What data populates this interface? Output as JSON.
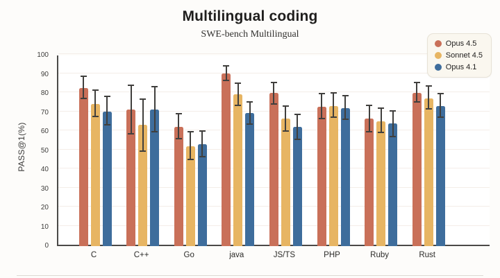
{
  "page": {
    "title": "Multilingual coding",
    "subtitle": "SWE-bench Multilingual"
  },
  "chart_data": {
    "type": "bar",
    "title": "Multilingual coding",
    "subtitle": "SWE-bench Multilingual",
    "xlabel": "",
    "ylabel": "PASS@1(%)",
    "ylim": [
      0,
      100
    ],
    "ytick_step": 10,
    "grid": true,
    "legend_position": "top-right",
    "categories": [
      "C",
      "C++",
      "Go",
      "java",
      "JS/TS",
      "PHP",
      "Ruby",
      "Rust"
    ],
    "series": [
      {
        "name": "Opus 4.5",
        "color": "#C97059",
        "values": [
          83,
          71.5,
          62.5,
          90.5,
          80.5,
          73,
          67,
          80.5
        ],
        "err_low": [
          77.5,
          59,
          56.5,
          87,
          74.5,
          67,
          60,
          75.5
        ],
        "err_high": [
          89,
          84.5,
          69.5,
          94.5,
          86,
          80,
          74,
          86
        ]
      },
      {
        "name": "Sonnet 4.5",
        "color": "#E7B563",
        "values": [
          74.5,
          63.5,
          52.5,
          79.5,
          67,
          73.5,
          65.5,
          77.5
        ],
        "err_low": [
          68,
          50,
          45.5,
          74,
          60.5,
          67.5,
          59.5,
          72
        ],
        "err_high": [
          82,
          77,
          60,
          85.5,
          73.5,
          80.5,
          72.5,
          84
        ]
      },
      {
        "name": "Opus 4.1",
        "color": "#3E6D9C",
        "values": [
          70.5,
          71.5,
          53.5,
          70,
          62.5,
          72.5,
          64.5,
          73.5
        ],
        "err_low": [
          63.5,
          60,
          47,
          64,
          56,
          66.5,
          57.5,
          67.5
        ],
        "err_high": [
          78.5,
          83.5,
          60.5,
          75.5,
          69,
          79,
          71,
          80
        ]
      }
    ]
  },
  "style": {
    "error_bar_color": "#403F3D",
    "axis_color": "#4A4947",
    "gridline_color": "#F4EDE8",
    "legend_bg": "#FAF7EF"
  }
}
